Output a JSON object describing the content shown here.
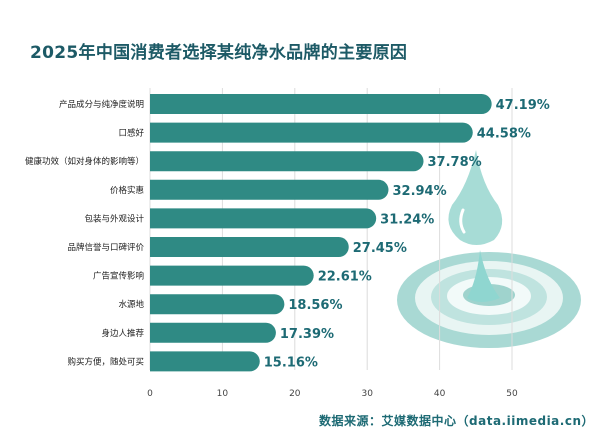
{
  "chart_data": {
    "type": "bar",
    "orientation": "horizontal",
    "title": "2025年中国消费者选择某纯净水品牌的主要原因",
    "categories": [
      "产品成分与纯净度说明",
      "口感好",
      "健康功效（如对身体的影响等）",
      "价格实惠",
      "包装与外观设计",
      "品牌信誉与口碑评价",
      "广告宣传影响",
      "水源地",
      "身边人推荐",
      "购买方便，随处可买"
    ],
    "values": [
      47.19,
      44.58,
      37.78,
      32.94,
      31.24,
      27.45,
      22.61,
      18.56,
      17.39,
      15.16
    ],
    "data_labels": [
      "47.19%",
      "44.58%",
      "37.78%",
      "32.94%",
      "31.24%",
      "27.45%",
      "22.61%",
      "18.56%",
      "17.39%",
      "15.16%"
    ],
    "xlim": [
      0,
      58
    ],
    "xticks": [
      0,
      10,
      20,
      30,
      40,
      50
    ],
    "grid": true,
    "bar_color": "#2f8a84",
    "label_color": "#1d6a74",
    "source": "数据来源：艾媒数据中心（data.iimedia.cn）"
  }
}
